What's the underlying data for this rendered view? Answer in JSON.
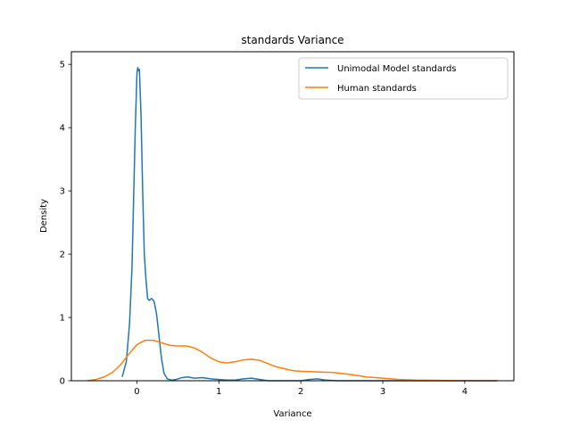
{
  "chart_data": {
    "type": "line",
    "title": "standards Variance",
    "xlabel": "Variance",
    "ylabel": "Density",
    "xlim": [
      -0.8,
      4.6
    ],
    "ylim": [
      0,
      5.2
    ],
    "x_ticks": [
      0,
      1,
      2,
      3,
      4
    ],
    "y_ticks": [
      0,
      1,
      2,
      3,
      4,
      5
    ],
    "grid": false,
    "legend_position": "top-right",
    "series": [
      {
        "name": "Unimodal Model standards",
        "color": "#1f77b4",
        "points": [
          [
            -0.18,
            0.06
          ],
          [
            -0.13,
            0.3
          ],
          [
            -0.09,
            0.9
          ],
          [
            -0.06,
            1.8
          ],
          [
            -0.04,
            2.9
          ],
          [
            -0.02,
            4.0
          ],
          [
            0.0,
            4.85
          ],
          [
            0.01,
            4.95
          ],
          [
            0.02,
            4.9
          ],
          [
            0.03,
            4.92
          ],
          [
            0.05,
            4.2
          ],
          [
            0.07,
            3.0
          ],
          [
            0.09,
            2.0
          ],
          [
            0.11,
            1.6
          ],
          [
            0.13,
            1.3
          ],
          [
            0.15,
            1.27
          ],
          [
            0.18,
            1.3
          ],
          [
            0.21,
            1.25
          ],
          [
            0.24,
            1.05
          ],
          [
            0.27,
            0.7
          ],
          [
            0.3,
            0.35
          ],
          [
            0.33,
            0.12
          ],
          [
            0.37,
            0.03
          ],
          [
            0.42,
            0.01
          ],
          [
            0.48,
            0.02
          ],
          [
            0.55,
            0.05
          ],
          [
            0.62,
            0.06
          ],
          [
            0.7,
            0.04
          ],
          [
            0.8,
            0.05
          ],
          [
            0.9,
            0.03
          ],
          [
            1.0,
            0.02
          ],
          [
            1.1,
            0.01
          ],
          [
            1.2,
            0.01
          ],
          [
            1.3,
            0.03
          ],
          [
            1.4,
            0.04
          ],
          [
            1.5,
            0.02
          ],
          [
            1.6,
            0.0
          ],
          [
            1.8,
            0.0
          ],
          [
            2.0,
            0.0
          ],
          [
            2.1,
            0.02
          ],
          [
            2.2,
            0.03
          ],
          [
            2.3,
            0.01
          ],
          [
            2.45,
            0.0
          ],
          [
            2.7,
            0.0
          ],
          [
            3.0,
            0.0
          ],
          [
            3.3,
            0.0
          ],
          [
            3.6,
            0.0
          ],
          [
            3.9,
            0.0
          ],
          [
            4.2,
            0.0
          ],
          [
            4.4,
            0.0
          ]
        ]
      },
      {
        "name": "Human standards",
        "color": "#ff7f0e",
        "points": [
          [
            -0.6,
            0.0
          ],
          [
            -0.5,
            0.02
          ],
          [
            -0.4,
            0.06
          ],
          [
            -0.3,
            0.13
          ],
          [
            -0.2,
            0.25
          ],
          [
            -0.1,
            0.42
          ],
          [
            0.0,
            0.57
          ],
          [
            0.1,
            0.64
          ],
          [
            0.2,
            0.64
          ],
          [
            0.3,
            0.6
          ],
          [
            0.4,
            0.56
          ],
          [
            0.5,
            0.55
          ],
          [
            0.6,
            0.55
          ],
          [
            0.7,
            0.52
          ],
          [
            0.8,
            0.45
          ],
          [
            0.9,
            0.36
          ],
          [
            1.0,
            0.3
          ],
          [
            1.1,
            0.28
          ],
          [
            1.2,
            0.3
          ],
          [
            1.3,
            0.33
          ],
          [
            1.4,
            0.34
          ],
          [
            1.5,
            0.32
          ],
          [
            1.6,
            0.27
          ],
          [
            1.7,
            0.22
          ],
          [
            1.8,
            0.19
          ],
          [
            1.9,
            0.16
          ],
          [
            2.0,
            0.15
          ],
          [
            2.2,
            0.14
          ],
          [
            2.4,
            0.13
          ],
          [
            2.6,
            0.1
          ],
          [
            2.8,
            0.06
          ],
          [
            3.0,
            0.04
          ],
          [
            3.2,
            0.02
          ],
          [
            3.4,
            0.01
          ],
          [
            3.7,
            0.005
          ],
          [
            4.0,
            0.0
          ],
          [
            4.4,
            0.0
          ]
        ]
      }
    ]
  }
}
